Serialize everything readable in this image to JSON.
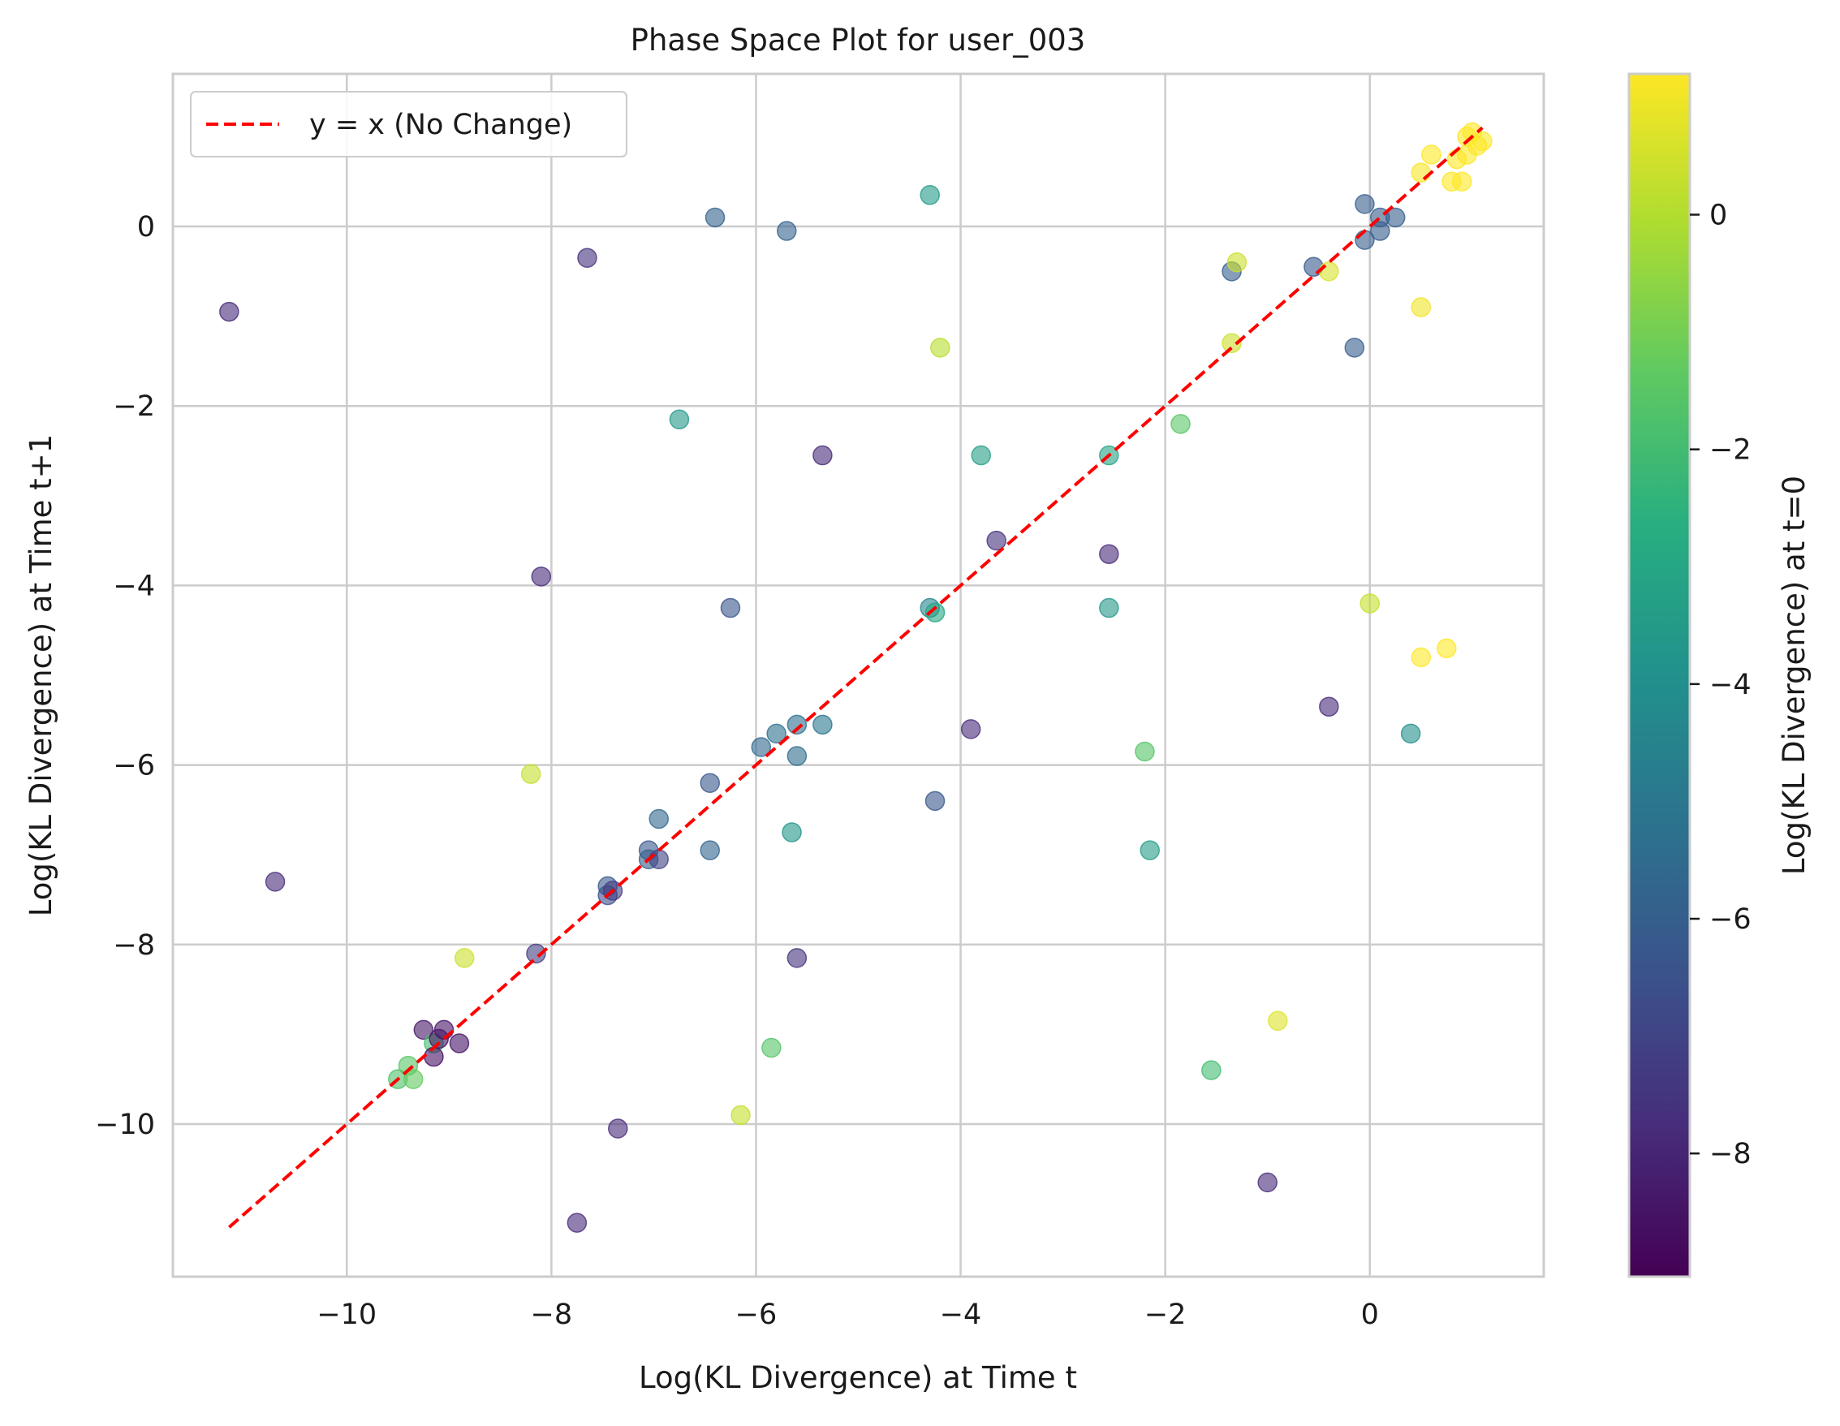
{
  "chart_data": {
    "type": "scatter",
    "title": "Phase Space Plot for user_003",
    "xlabel": "Log(KL Divergence) at Time t",
    "ylabel": "Log(KL Divergence) at Time t+1",
    "xlim": [
      -11.7,
      1.7
    ],
    "ylim": [
      -11.7,
      1.7
    ],
    "x_ticks": [
      -10,
      -8,
      -6,
      -4,
      -2,
      0
    ],
    "y_ticks": [
      -10,
      -8,
      -6,
      -4,
      -2,
      0
    ],
    "x_tick_labels": [
      "−10",
      "−8",
      "−6",
      "−4",
      "−2",
      "0"
    ],
    "y_tick_labels": [
      "−10",
      "−8",
      "−6",
      "−4",
      "−2",
      "0"
    ],
    "grid": true,
    "legend": {
      "position": "top-left",
      "entries": [
        "y = x (No Change)"
      ]
    },
    "reference_line": {
      "name": "y = x (No Change)",
      "color": "#ff0000",
      "style": "dashed",
      "x": [
        -11.15,
        1.1
      ],
      "y": [
        -11.15,
        1.1
      ]
    },
    "colorbar": {
      "label": "Log(KL Divergence) at t=0",
      "colormap": "viridis",
      "range": [
        -9.05,
        1.2
      ],
      "ticks": [
        0,
        -2,
        -4,
        -6,
        -8
      ],
      "tick_labels": [
        "0",
        "−2",
        "−4",
        "−6",
        "−8"
      ]
    },
    "points": [
      {
        "x": -11.15,
        "y": -0.95,
        "c": -7.8
      },
      {
        "x": -10.7,
        "y": -7.3,
        "c": -7.8
      },
      {
        "x": -9.5,
        "y": -9.5,
        "c": -1.7
      },
      {
        "x": -9.4,
        "y": -9.35,
        "c": -1.5
      },
      {
        "x": -9.35,
        "y": -9.5,
        "c": -1.3
      },
      {
        "x": -9.25,
        "y": -8.95,
        "c": -8.4
      },
      {
        "x": -9.15,
        "y": -9.1,
        "c": -2.0
      },
      {
        "x": -9.15,
        "y": -9.25,
        "c": -8.6
      },
      {
        "x": -9.1,
        "y": -9.05,
        "c": -8.6
      },
      {
        "x": -9.05,
        "y": -8.95,
        "c": -8.5
      },
      {
        "x": -8.9,
        "y": -9.1,
        "c": -8.5
      },
      {
        "x": -8.85,
        "y": -8.15,
        "c": 0.4
      },
      {
        "x": -8.2,
        "y": -6.1,
        "c": 0.3
      },
      {
        "x": -8.15,
        "y": -8.1,
        "c": -7.2
      },
      {
        "x": -8.1,
        "y": -3.9,
        "c": -7.8
      },
      {
        "x": -7.75,
        "y": -11.1,
        "c": -7.8
      },
      {
        "x": -7.65,
        "y": -0.35,
        "c": -7.6
      },
      {
        "x": -7.45,
        "y": -7.35,
        "c": -6.2
      },
      {
        "x": -7.45,
        "y": -7.45,
        "c": -6.6
      },
      {
        "x": -7.4,
        "y": -7.4,
        "c": -7.2
      },
      {
        "x": -7.35,
        "y": -10.05,
        "c": -7.8
      },
      {
        "x": -7.05,
        "y": -6.95,
        "c": -6.2
      },
      {
        "x": -7.05,
        "y": -7.05,
        "c": -6.0
      },
      {
        "x": -6.95,
        "y": -6.6,
        "c": -5.6
      },
      {
        "x": -6.95,
        "y": -7.05,
        "c": -7.0
      },
      {
        "x": -6.75,
        "y": -2.15,
        "c": -3.6
      },
      {
        "x": -6.45,
        "y": -6.2,
        "c": -6.3
      },
      {
        "x": -6.45,
        "y": -6.95,
        "c": -5.7
      },
      {
        "x": -6.4,
        "y": 0.1,
        "c": -5.9
      },
      {
        "x": -6.25,
        "y": -4.25,
        "c": -6.3
      },
      {
        "x": -6.15,
        "y": -9.9,
        "c": 0.3
      },
      {
        "x": -5.95,
        "y": -5.8,
        "c": -5.6
      },
      {
        "x": -5.85,
        "y": -9.15,
        "c": -1.6
      },
      {
        "x": -5.8,
        "y": -5.65,
        "c": -5.2
      },
      {
        "x": -5.7,
        "y": -0.05,
        "c": -5.8
      },
      {
        "x": -5.65,
        "y": -6.75,
        "c": -3.7
      },
      {
        "x": -5.6,
        "y": -5.55,
        "c": -5.3
      },
      {
        "x": -5.6,
        "y": -5.9,
        "c": -5.4
      },
      {
        "x": -5.6,
        "y": -8.15,
        "c": -7.6
      },
      {
        "x": -5.35,
        "y": -5.55,
        "c": -5.0
      },
      {
        "x": -5.35,
        "y": -2.55,
        "c": -7.8
      },
      {
        "x": -4.3,
        "y": 0.35,
        "c": -3.5
      },
      {
        "x": -4.3,
        "y": -4.25,
        "c": -4.4
      },
      {
        "x": -4.25,
        "y": -4.3,
        "c": -3.0
      },
      {
        "x": -4.25,
        "y": -6.4,
        "c": -6.3
      },
      {
        "x": -4.2,
        "y": -1.35,
        "c": 0.1
      },
      {
        "x": -3.9,
        "y": -5.6,
        "c": -7.8
      },
      {
        "x": -3.8,
        "y": -2.55,
        "c": -3.3
      },
      {
        "x": -3.65,
        "y": -3.5,
        "c": -7.6
      },
      {
        "x": -2.55,
        "y": -3.65,
        "c": -7.8
      },
      {
        "x": -2.55,
        "y": -2.55,
        "c": -3.2
      },
      {
        "x": -2.55,
        "y": -4.25,
        "c": -3.6
      },
      {
        "x": -2.2,
        "y": -5.85,
        "c": -1.6
      },
      {
        "x": -2.15,
        "y": -6.95,
        "c": -3.4
      },
      {
        "x": -1.85,
        "y": -2.2,
        "c": -1.5
      },
      {
        "x": -1.55,
        "y": -9.4,
        "c": -2.0
      },
      {
        "x": -1.35,
        "y": -0.5,
        "c": -6.0
      },
      {
        "x": -1.35,
        "y": -1.3,
        "c": 0.4
      },
      {
        "x": -1.3,
        "y": -0.4,
        "c": 0.4
      },
      {
        "x": -1.0,
        "y": -10.65,
        "c": -7.8
      },
      {
        "x": -0.9,
        "y": -8.85,
        "c": 0.7
      },
      {
        "x": -0.55,
        "y": -0.45,
        "c": -6.2
      },
      {
        "x": -0.4,
        "y": -0.5,
        "c": 0.6
      },
      {
        "x": -0.4,
        "y": -5.35,
        "c": -7.8
      },
      {
        "x": -0.15,
        "y": -1.35,
        "c": -6.0
      },
      {
        "x": -0.05,
        "y": 0.25,
        "c": -6.0
      },
      {
        "x": -0.05,
        "y": -0.15,
        "c": -6.0
      },
      {
        "x": 0.0,
        "y": -4.2,
        "c": 0.3
      },
      {
        "x": 0.1,
        "y": 0.1,
        "c": -6.1
      },
      {
        "x": 0.1,
        "y": -0.05,
        "c": -6.1
      },
      {
        "x": 0.25,
        "y": 0.1,
        "c": -6.0
      },
      {
        "x": 0.4,
        "y": -5.65,
        "c": -4.0
      },
      {
        "x": 0.5,
        "y": -4.8,
        "c": 1.2
      },
      {
        "x": 0.5,
        "y": 0.6,
        "c": 1.1
      },
      {
        "x": 0.5,
        "y": -0.9,
        "c": 1.0
      },
      {
        "x": 0.6,
        "y": 0.8,
        "c": 1.2
      },
      {
        "x": 0.75,
        "y": -4.7,
        "c": 1.2
      },
      {
        "x": 0.8,
        "y": 0.5,
        "c": 1.2
      },
      {
        "x": 0.85,
        "y": 0.75,
        "c": 1.2
      },
      {
        "x": 0.9,
        "y": 0.5,
        "c": 1.2
      },
      {
        "x": 0.95,
        "y": 0.8,
        "c": 1.2
      },
      {
        "x": 0.95,
        "y": 1.0,
        "c": 1.2
      },
      {
        "x": 1.0,
        "y": 1.05,
        "c": 1.2
      },
      {
        "x": 1.05,
        "y": 0.9,
        "c": 1.2
      },
      {
        "x": 1.1,
        "y": 0.95,
        "c": 1.2
      }
    ],
    "marker_alpha": 0.6
  }
}
